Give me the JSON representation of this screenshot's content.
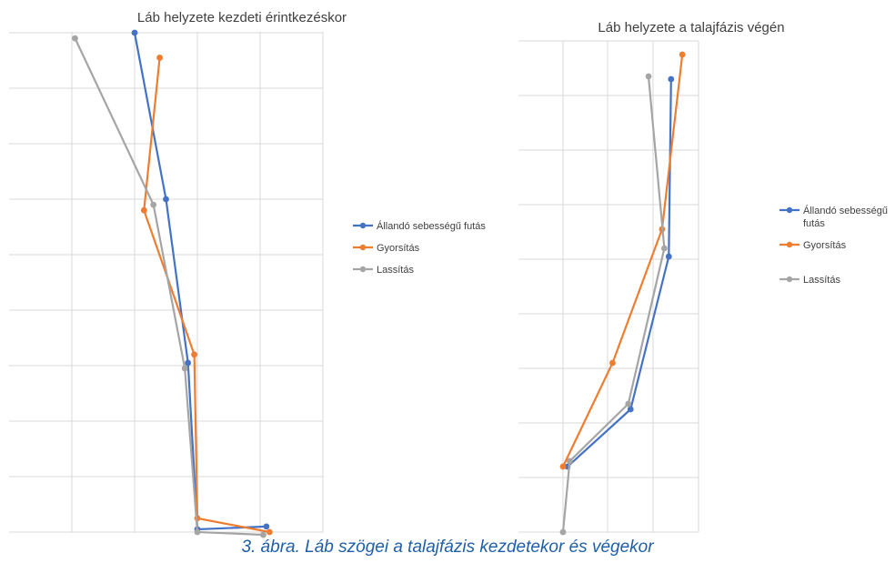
{
  "caption": "3. ábra. Láb szögei a talajfázis kezdetekor és végekor",
  "chart_data": [
    {
      "type": "scatter",
      "title": "Láb helyzete kezdeti érintkezéskor",
      "xlabel": "",
      "ylabel": "",
      "grid": true,
      "legend": "right",
      "series": [
        {
          "name": "Állandó sebességű futás",
          "color": "#4472C4",
          "points": [
            [
              2.0,
              9.0
            ],
            [
              2.5,
              6.0
            ],
            [
              2.85,
              3.05
            ],
            [
              3.0,
              0.05
            ],
            [
              4.1,
              0.1
            ]
          ]
        },
        {
          "name": "Gyorsítás",
          "color": "#ED7D31",
          "points": [
            [
              2.4,
              8.55
            ],
            [
              2.15,
              5.8
            ],
            [
              2.95,
              3.2
            ],
            [
              3.0,
              0.25
            ],
            [
              4.15,
              0.0
            ]
          ]
        },
        {
          "name": "Lassítás",
          "color": "#A5A5A5",
          "points": [
            [
              1.05,
              8.9
            ],
            [
              2.3,
              5.9
            ],
            [
              2.8,
              2.95
            ],
            [
              3.0,
              0.0
            ],
            [
              4.05,
              -0.05
            ]
          ]
        }
      ]
    },
    {
      "type": "scatter",
      "title": "Láb helyzete a talajfázis végén",
      "xlabel": "",
      "ylabel": "",
      "grid": true,
      "legend": "right",
      "series": [
        {
          "name": "Állandó sebességű futás",
          "color": "#4472C4",
          "points": [
            [
              0.1,
              1.2
            ],
            [
              1.5,
              2.25
            ],
            [
              2.35,
              5.05
            ],
            [
              2.4,
              8.3
            ]
          ]
        },
        {
          "name": "Gyorsítás",
          "color": "#ED7D31",
          "points": [
            [
              0.0,
              1.2
            ],
            [
              1.1,
              3.1
            ],
            [
              2.2,
              5.55
            ],
            [
              2.65,
              8.75
            ]
          ]
        },
        {
          "name": "Lassítás",
          "color": "#A5A5A5",
          "points": [
            [
              0.0,
              0.0
            ],
            [
              0.15,
              1.3
            ],
            [
              1.45,
              2.35
            ],
            [
              2.25,
              5.2
            ],
            [
              1.9,
              8.35
            ]
          ]
        }
      ]
    }
  ]
}
